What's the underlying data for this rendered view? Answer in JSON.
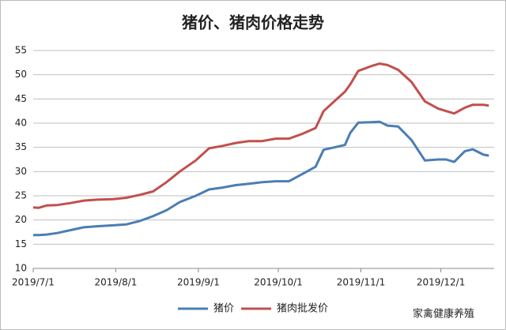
{
  "chart_data": {
    "type": "line",
    "title": "猪价、猪肉价格走势",
    "x": [
      "2019/7/1",
      "2019/7/3",
      "2019/7/6",
      "2019/7/10",
      "2019/7/15",
      "2019/7/20",
      "2019/7/25",
      "2019/7/31",
      "2019/8/5",
      "2019/8/10",
      "2019/8/15",
      "2019/8/20",
      "2019/8/25",
      "2019/8/31",
      "2019/9/5",
      "2019/9/10",
      "2019/9/15",
      "2019/9/20",
      "2019/9/25",
      "2019/9/30",
      "2019/10/5",
      "2019/10/10",
      "2019/10/15",
      "2019/10/18",
      "2019/10/22",
      "2019/10/26",
      "2019/10/28",
      "2019/10/31",
      "2019/11/5",
      "2019/11/8",
      "2019/11/11",
      "2019/11/15",
      "2019/11/20",
      "2019/11/25",
      "2019/11/30",
      "2019/12/3",
      "2019/12/6",
      "2019/12/10",
      "2019/12/13",
      "2019/12/17",
      "2019/12/19"
    ],
    "series": [
      {
        "name": "猪价",
        "color": "#4a7eb4",
        "values": [
          16.9,
          16.9,
          17.0,
          17.3,
          17.9,
          18.5,
          18.7,
          18.9,
          19.1,
          19.8,
          20.8,
          22.0,
          23.7,
          25.0,
          26.3,
          26.7,
          27.2,
          27.5,
          27.8,
          28.0,
          28.0,
          29.5,
          31.0,
          34.5,
          35.0,
          35.5,
          38.0,
          40.1,
          40.2,
          40.3,
          39.5,
          39.3,
          36.5,
          32.3,
          32.5,
          32.5,
          32.0,
          34.2,
          34.6,
          33.5,
          33.3
        ]
      },
      {
        "name": "猪肉批发价",
        "color": "#c0504d",
        "values": [
          22.6,
          22.5,
          23.0,
          23.1,
          23.5,
          24.0,
          24.2,
          24.3,
          24.6,
          25.2,
          25.9,
          27.8,
          30.0,
          32.3,
          34.8,
          35.3,
          35.9,
          36.3,
          36.3,
          36.8,
          36.8,
          37.8,
          39.0,
          42.5,
          44.5,
          46.5,
          48.0,
          50.8,
          51.8,
          52.3,
          52.0,
          51.0,
          48.5,
          44.5,
          43.0,
          42.5,
          42.0,
          43.2,
          43.8,
          43.8,
          43.6
        ]
      }
    ],
    "xlim": [
      "2019/7/1",
      "2019/12/21"
    ],
    "xticks": [
      "2019/7/1",
      "2019/8/1",
      "2019/9/1",
      "2019/10/1",
      "2019/11/1",
      "2019/12/1"
    ],
    "ylim": [
      10,
      55
    ],
    "yticks": [
      10,
      15,
      20,
      25,
      30,
      35,
      40,
      45,
      50,
      55
    ],
    "grid": true,
    "legend": "bottom",
    "watermark": "家禽健康养殖"
  }
}
